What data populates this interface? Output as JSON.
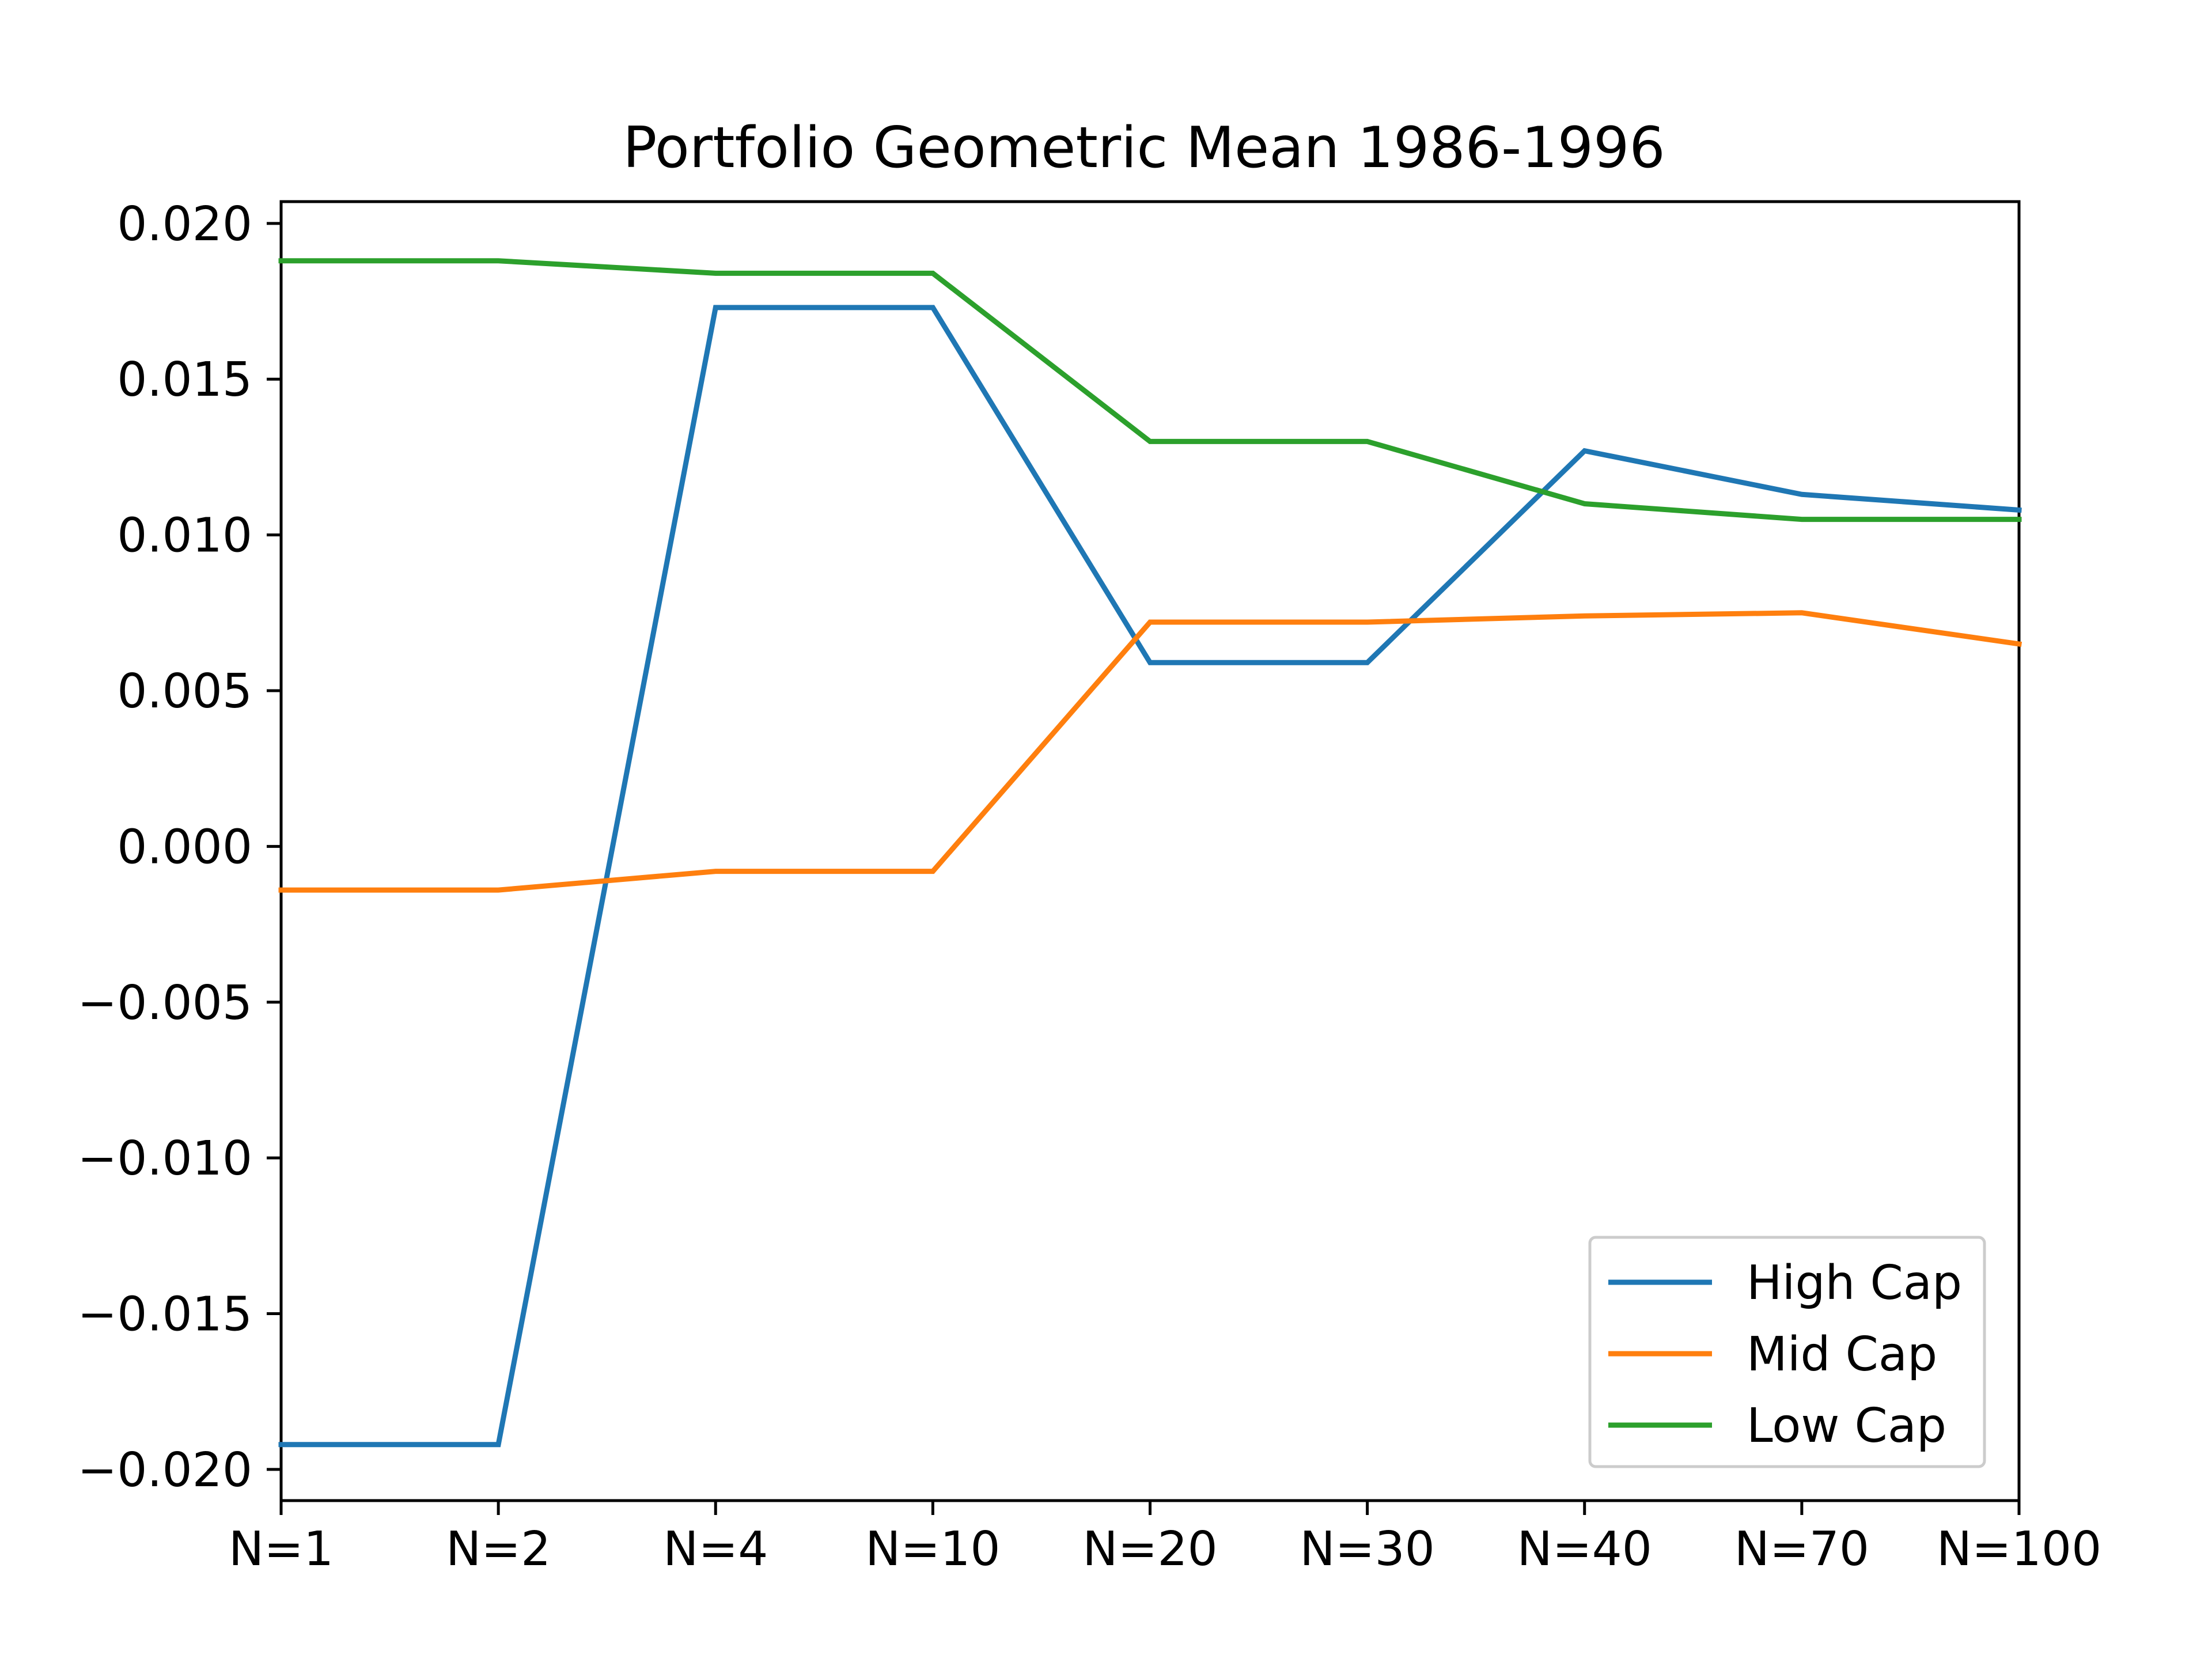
{
  "chart_data": {
    "type": "line",
    "title": "Portfolio Geometric Mean 1986-1996",
    "xlabel": "",
    "ylabel": "",
    "categories": [
      "N=1",
      "N=2",
      "N=4",
      "N=10",
      "N=20",
      "N=30",
      "N=40",
      "N=70",
      "N=100"
    ],
    "ylim": [
      -0.021,
      0.0207
    ],
    "yticks": [
      -0.02,
      -0.015,
      -0.01,
      -0.005,
      0.0,
      0.005,
      0.01,
      0.015,
      0.02
    ],
    "ytick_labels": [
      "−0.020",
      "−0.015",
      "−0.010",
      "−0.005",
      "0.000",
      "0.005",
      "0.010",
      "0.015",
      "0.020"
    ],
    "grid": false,
    "legend_position": "lower-right",
    "series": [
      {
        "name": "High Cap",
        "color": "#1f77b4",
        "values": [
          -0.0192,
          -0.0192,
          0.0173,
          0.0173,
          0.0059,
          0.0059,
          0.0127,
          0.0113,
          0.0108
        ]
      },
      {
        "name": "Mid Cap",
        "color": "#ff7f0e",
        "values": [
          -0.0014,
          -0.0014,
          -0.0008,
          -0.0008,
          0.0072,
          0.0072,
          0.0074,
          0.0075,
          0.0065
        ]
      },
      {
        "name": "Low Cap",
        "color": "#2ca02c",
        "values": [
          0.0188,
          0.0188,
          0.0184,
          0.0184,
          0.013,
          0.013,
          0.011,
          0.0105,
          0.0105
        ]
      }
    ]
  }
}
